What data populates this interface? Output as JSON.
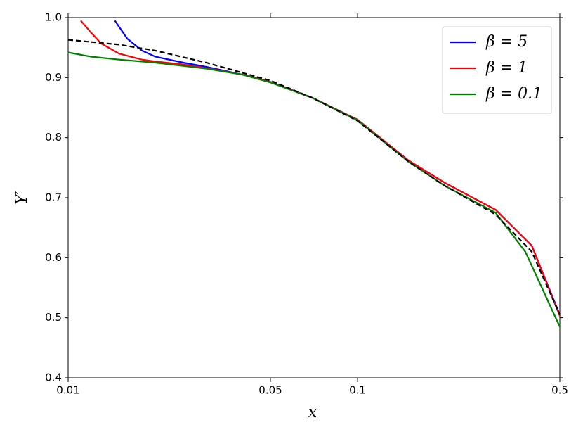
{
  "chart_data": {
    "type": "line",
    "x_label": "x",
    "y_label": "Y′",
    "xscale": "log",
    "xlim": [
      0.01,
      0.5
    ],
    "xticks": [
      0.01,
      0.05,
      0.1,
      0.5
    ],
    "ylim": [
      0.4,
      1
    ],
    "yticks": [
      0.4,
      0.5,
      0.6,
      0.7,
      0.8,
      0.9,
      {
        "value": 1,
        "label": "1.0"
      }
    ],
    "legend": "upper right",
    "series": [
      {
        "name": "β = 5",
        "color": "#0000ff",
        "dash": false,
        "x": [
          0.0145,
          0.016,
          0.018,
          0.02,
          0.025,
          0.03,
          0.04,
          0.05,
          0.07,
          0.1,
          0.15,
          0.2,
          0.3,
          0.4,
          0.5
        ],
        "values": [
          0.995,
          0.965,
          0.945,
          0.935,
          0.925,
          0.918,
          0.905,
          0.893,
          0.866,
          0.83,
          0.762,
          0.725,
          0.68,
          0.62,
          0.505
        ]
      },
      {
        "name": "β = 1",
        "color": "#ff0000",
        "dash": false,
        "x": [
          0.01106,
          0.012,
          0.013,
          0.015,
          0.018,
          0.02,
          0.025,
          0.03,
          0.04,
          0.05,
          0.07,
          0.1,
          0.15,
          0.2,
          0.3,
          0.4,
          0.5
        ],
        "values": [
          0.995,
          0.975,
          0.957,
          0.94,
          0.93,
          0.927,
          0.922,
          0.916,
          0.905,
          0.893,
          0.866,
          0.83,
          0.762,
          0.725,
          0.68,
          0.62,
          0.503
        ]
      },
      {
        "name": "β = 0.1",
        "color": "#008000",
        "dash": false,
        "x": [
          0.01,
          0.012,
          0.015,
          0.02,
          0.03,
          0.04,
          0.05,
          0.07,
          0.1,
          0.15,
          0.2,
          0.3,
          0.38,
          0.5
        ],
        "values": [
          0.942,
          0.935,
          0.93,
          0.925,
          0.915,
          0.905,
          0.892,
          0.866,
          0.829,
          0.76,
          0.72,
          0.675,
          0.61,
          0.485
        ]
      },
      {
        "color": "#000000",
        "dash": true,
        "x": [
          0.01,
          0.015,
          0.02,
          0.03,
          0.05,
          0.07,
          0.1,
          0.15,
          0.2,
          0.3,
          0.4,
          0.5
        ],
        "values": [
          0.963,
          0.955,
          0.945,
          0.925,
          0.895,
          0.866,
          0.828,
          0.76,
          0.72,
          0.672,
          0.61,
          0.505
        ]
      }
    ]
  }
}
